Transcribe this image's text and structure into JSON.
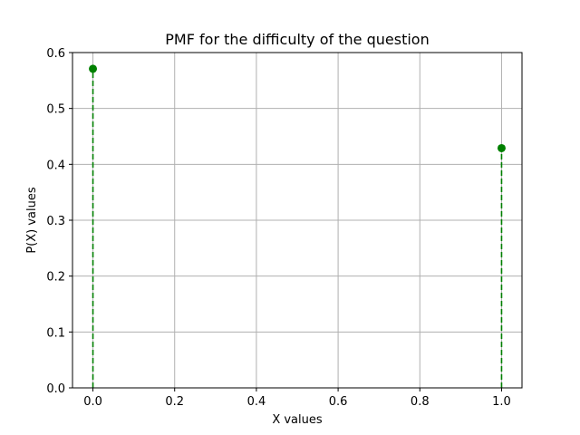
{
  "chart_data": {
    "type": "stem",
    "title": "PMF for the difficulty of the question",
    "xlabel": "X values",
    "ylabel": "P(X) values",
    "x": [
      0,
      1
    ],
    "y": [
      0.571,
      0.429
    ],
    "xlim": [
      -0.05,
      1.05
    ],
    "ylim": [
      0.0,
      0.6
    ],
    "xticks": [
      0.0,
      0.2,
      0.4,
      0.6,
      0.8,
      1.0
    ],
    "xtick_labels": [
      "0.0",
      "0.2",
      "0.4",
      "0.6",
      "0.8",
      "1.0"
    ],
    "yticks": [
      0.0,
      0.1,
      0.2,
      0.3,
      0.4,
      0.5,
      0.6
    ],
    "ytick_labels": [
      "0.0",
      "0.1",
      "0.2",
      "0.3",
      "0.4",
      "0.5",
      "0.6"
    ],
    "grid": true,
    "color": "#008000",
    "line_style": "dashed"
  }
}
